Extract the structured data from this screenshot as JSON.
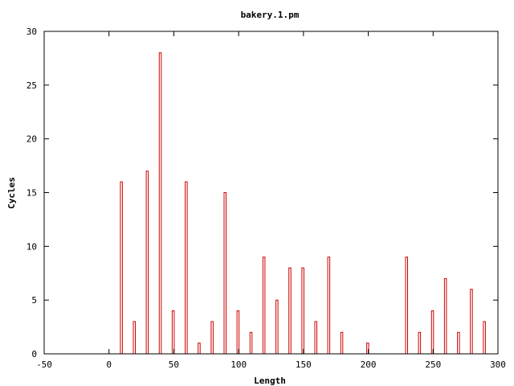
{
  "chart_data": {
    "type": "bar",
    "title": "bakery.1.pm",
    "xlabel": "Length",
    "ylabel": "Cycles",
    "xlim": [
      -50,
      300
    ],
    "ylim": [
      0,
      30
    ],
    "xticks": [
      "-50",
      "0",
      "50",
      "100",
      "150",
      "200",
      "250",
      "300"
    ],
    "yticks": [
      "0",
      "5",
      "10",
      "15",
      "20",
      "25",
      "30"
    ],
    "grid": false,
    "legend": "none",
    "bar_color": "#cc0000",
    "x": [
      10,
      20,
      30,
      40,
      50,
      60,
      70,
      80,
      90,
      100,
      110,
      120,
      130,
      140,
      150,
      160,
      170,
      180,
      200,
      230,
      240,
      250,
      260,
      270,
      280,
      290
    ],
    "values": [
      16,
      3,
      17,
      28,
      4,
      16,
      1,
      3,
      15,
      4,
      2,
      9,
      5,
      8,
      8,
      3,
      9,
      2,
      1,
      9,
      2,
      4,
      7,
      2,
      6,
      3
    ]
  }
}
